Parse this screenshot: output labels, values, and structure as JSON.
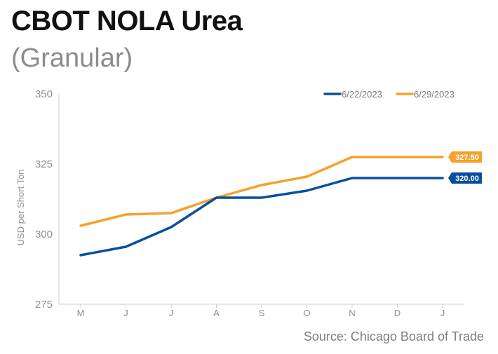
{
  "chart_data": {
    "type": "line",
    "title": "CBOT NOLA Urea",
    "subtitle": "(Granular)",
    "ylabel": "USD per Short Ton",
    "xlabel": "",
    "source": "Source: Chicago Board of Trade",
    "categories": [
      "M",
      "J",
      "J",
      "A",
      "S",
      "O",
      "N",
      "D",
      "J"
    ],
    "ylim": [
      275,
      350
    ],
    "yticks": [
      275,
      300,
      325,
      350
    ],
    "grid": false,
    "legend_position": "top-right",
    "series": [
      {
        "name": "6/22/2023",
        "color": "#0b4f9c",
        "values": [
          292.5,
          295.5,
          302.5,
          313,
          313,
          315.5,
          320,
          320,
          320
        ],
        "end_label": "320.00"
      },
      {
        "name": "6/29/2023",
        "color": "#f5a12a",
        "values": [
          303,
          307,
          307.5,
          313,
          317.5,
          320.5,
          327.5,
          327.5,
          327.5
        ],
        "end_label": "327.50"
      }
    ]
  }
}
